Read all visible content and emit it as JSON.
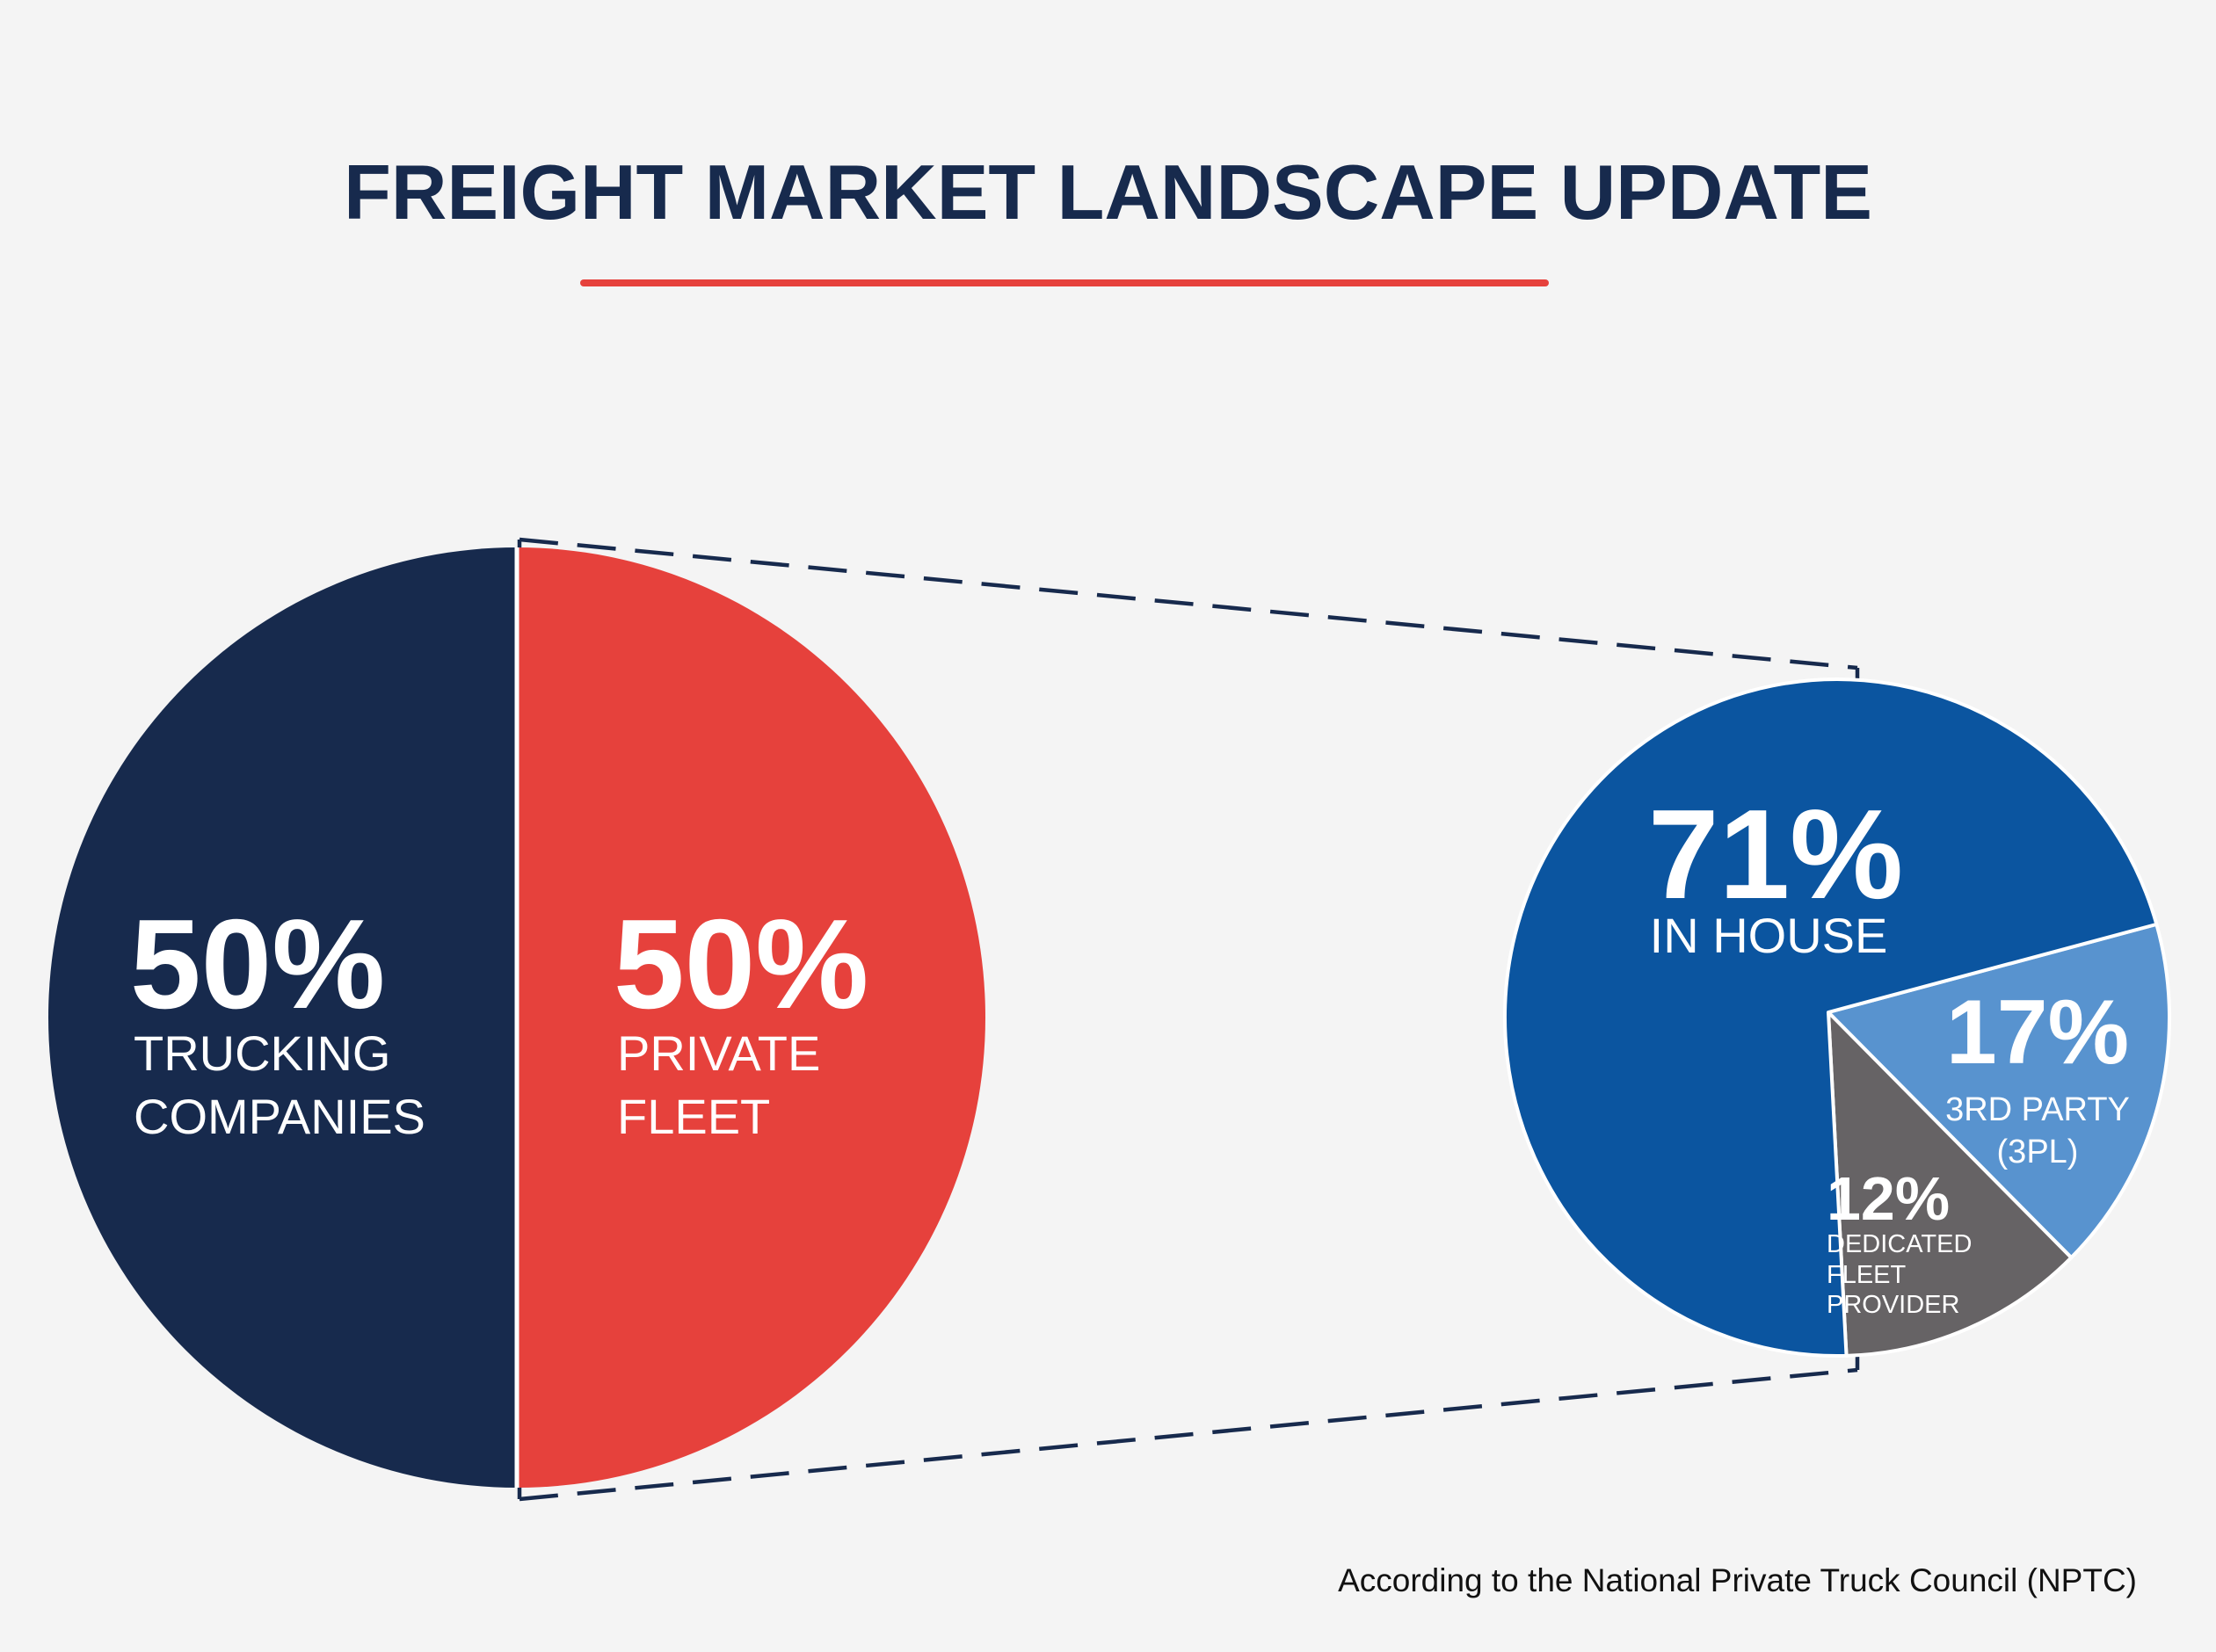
{
  "title": "FREIGHT MARKET LANDSCAPE UPDATE",
  "source_note": "According to the National Private Truck Council (NPTC)",
  "colors": {
    "title": "#172a4d",
    "accent_line": "#e6413c",
    "trucking_companies": "#172a4d",
    "private_fleet": "#e6413c",
    "in_house": "#0b55a0",
    "third_party": "#5893cf",
    "dedicated_fleet": "#666365",
    "connector": "#172a4d",
    "label_text": "#ffffff"
  },
  "chart_data": [
    {
      "type": "pie",
      "title": "",
      "slices": [
        {
          "value": 50,
          "percent_label": "50%",
          "label_lines": [
            "TRUCKING",
            "COMPANIES"
          ],
          "color": "#172a4d"
        },
        {
          "value": 50,
          "percent_label": "50%",
          "label_lines": [
            "PRIVATE",
            "FLEET"
          ],
          "color": "#e6413c"
        }
      ]
    },
    {
      "type": "pie",
      "title": "",
      "breakdown_of": "PRIVATE FLEET",
      "slices": [
        {
          "value": 71,
          "percent_label": "71%",
          "label_lines": [
            "IN HOUSE"
          ],
          "color": "#0b55a0"
        },
        {
          "value": 17,
          "percent_label": "17%",
          "label_lines": [
            "3RD PARTY",
            "(3PL)"
          ],
          "color": "#5893cf"
        },
        {
          "value": 12,
          "percent_label": "12%",
          "label_lines": [
            "DEDICATED",
            "FLEET",
            "PROVIDER"
          ],
          "color": "#666365"
        }
      ]
    }
  ]
}
